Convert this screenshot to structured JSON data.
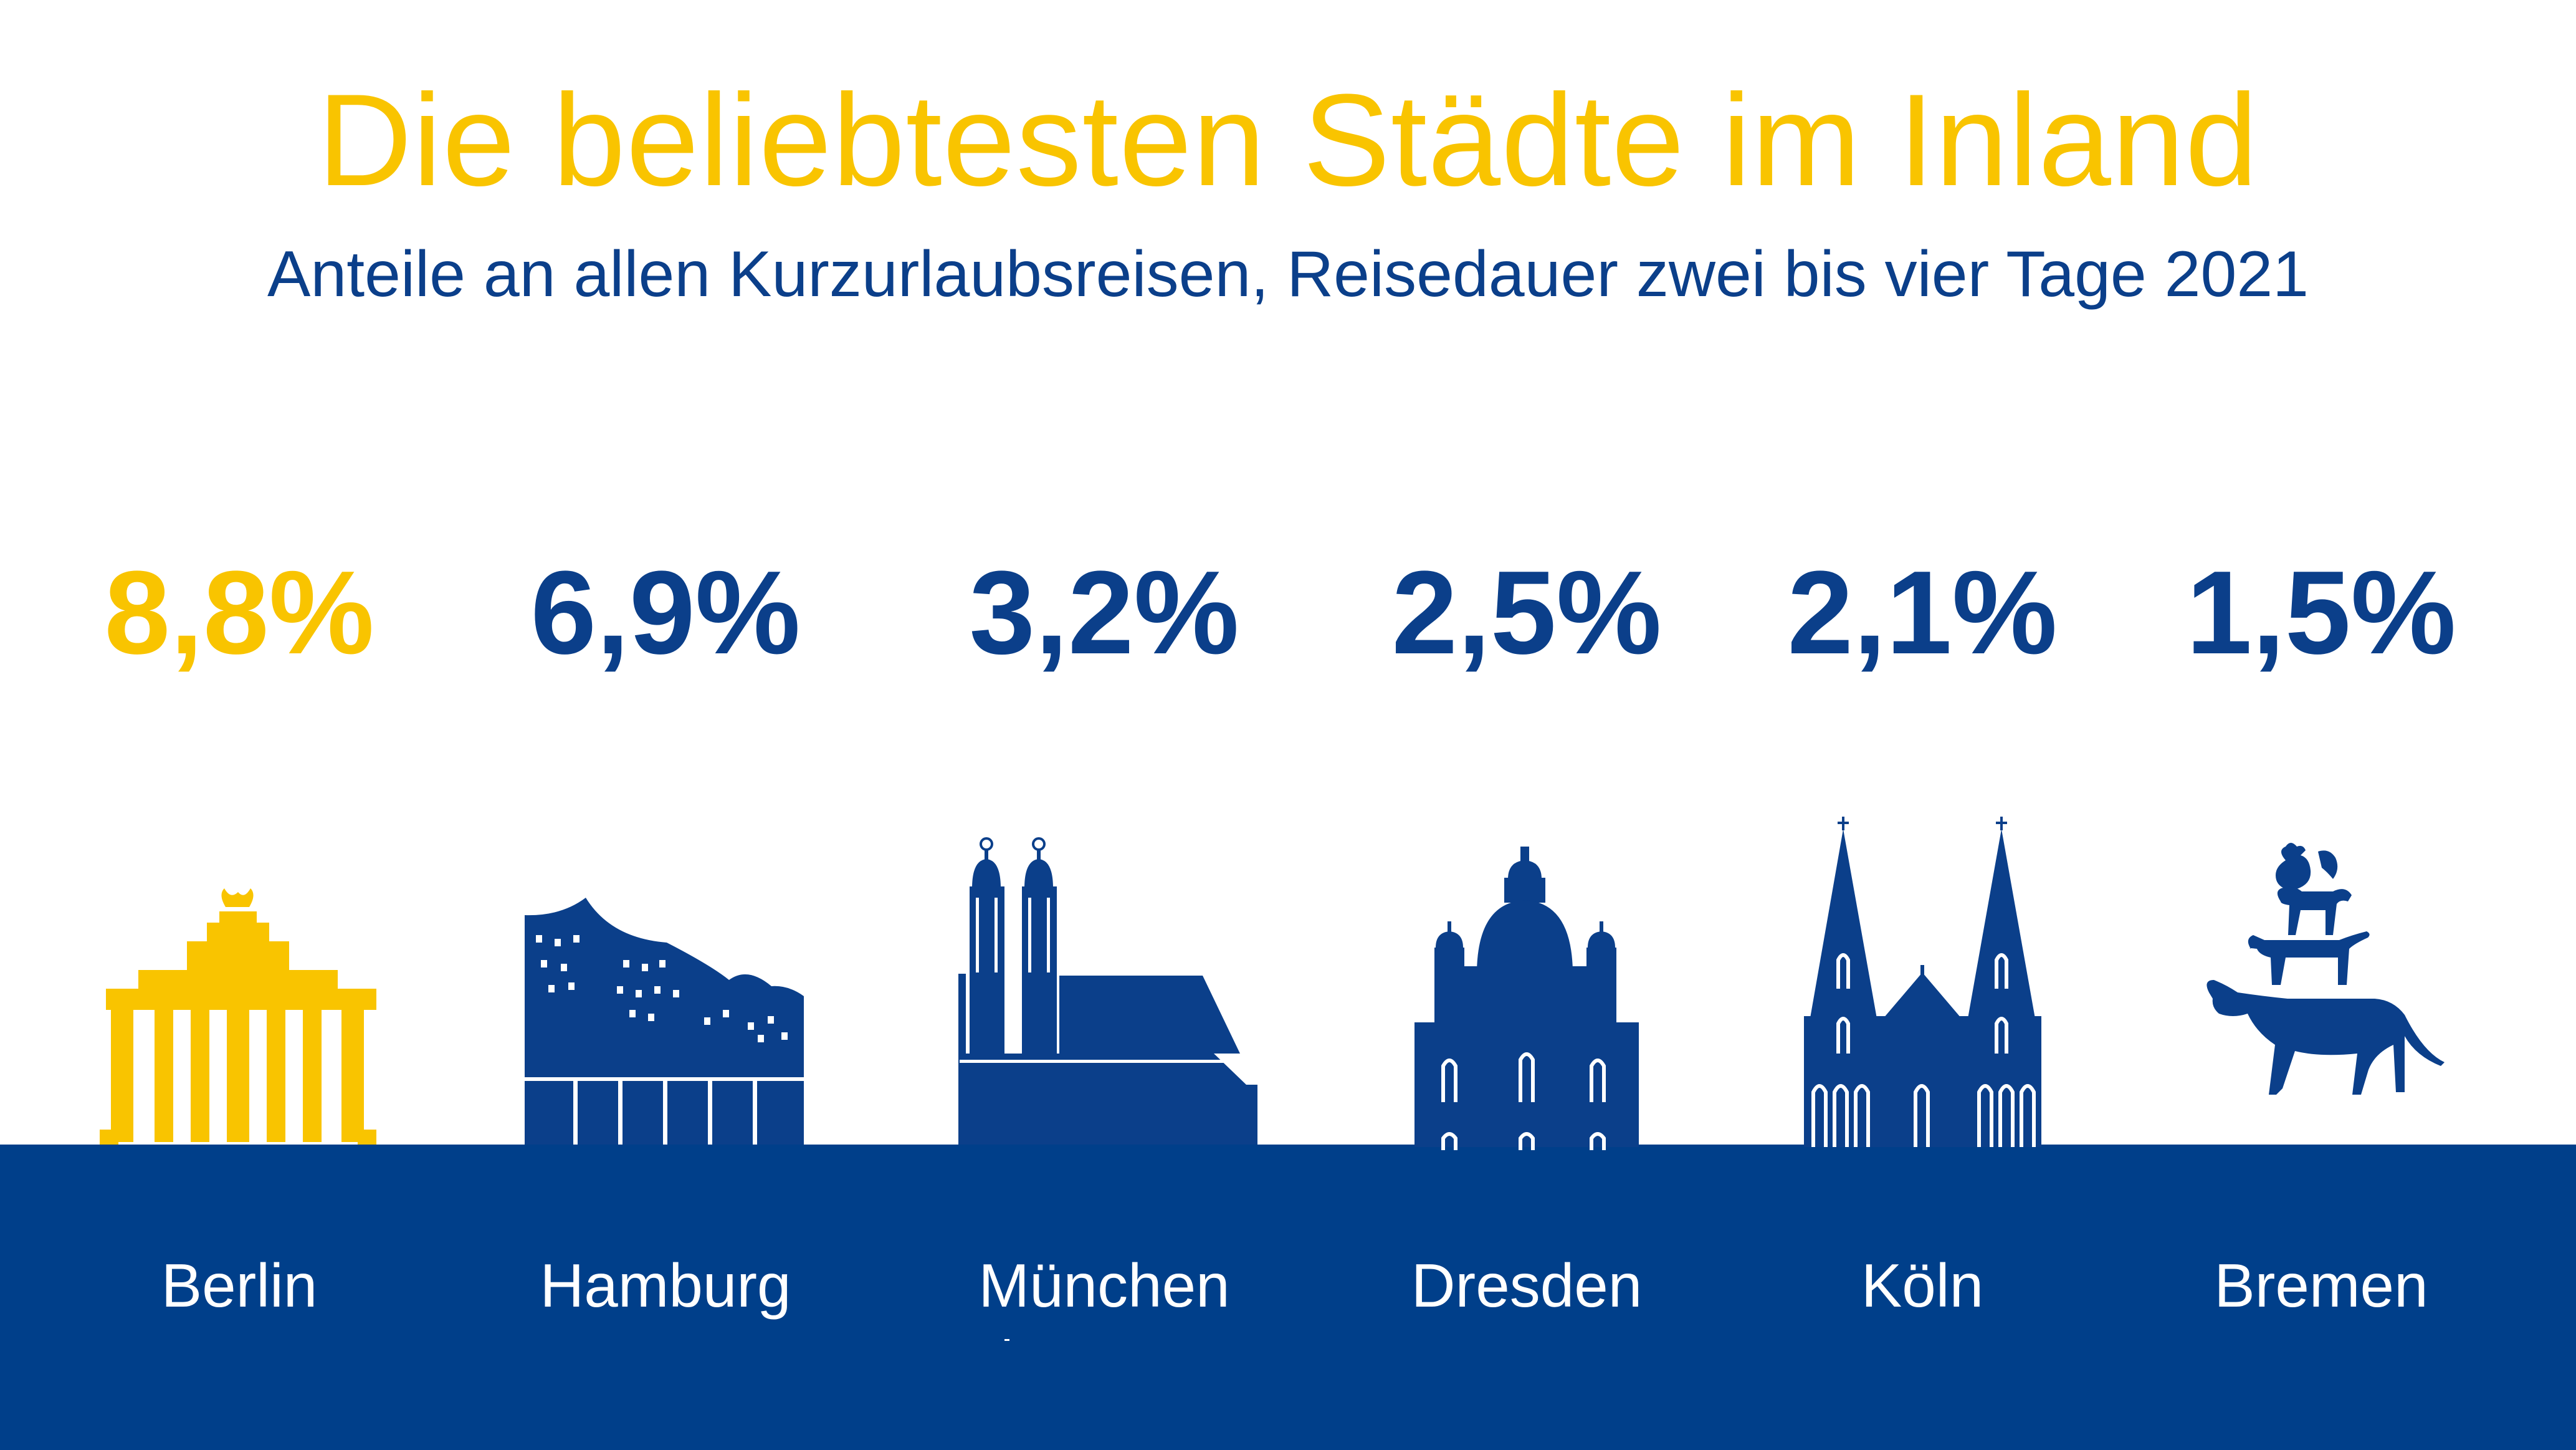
{
  "title": "Die beliebtesten Städte im Inland",
  "subtitle": "Anteile an allen Kurzurlaubsreisen, Reisedauer zwei bis vier Tage 2021",
  "colors": {
    "highlight": "#f9c400",
    "primary": "#0b3f8a",
    "band": "#003f8a",
    "background": "#ffffff"
  },
  "chart_data": {
    "type": "bar",
    "title": "Die beliebtesten Städte im Inland",
    "subtitle": "Anteile an allen Kurzurlaubsreisen, Reisedauer zwei bis vier Tage 2021",
    "categories": [
      "Berlin",
      "Hamburg",
      "München",
      "Dresden",
      "Köln",
      "Bremen"
    ],
    "values": [
      8.8,
      6.9,
      3.2,
      2.5,
      2.1,
      1.5
    ],
    "value_labels": [
      "8,8%",
      "6,9%",
      "3,2%",
      "2,5%",
      "2,1%",
      "1,5%"
    ],
    "unit": "%",
    "highlight_index": 0,
    "icons": [
      "brandenburg-gate-icon",
      "elbphilharmonie-icon",
      "frauenkirche-munich-icon",
      "frauenkirche-dresden-icon",
      "cologne-cathedral-icon",
      "town-musicians-icon"
    ]
  }
}
